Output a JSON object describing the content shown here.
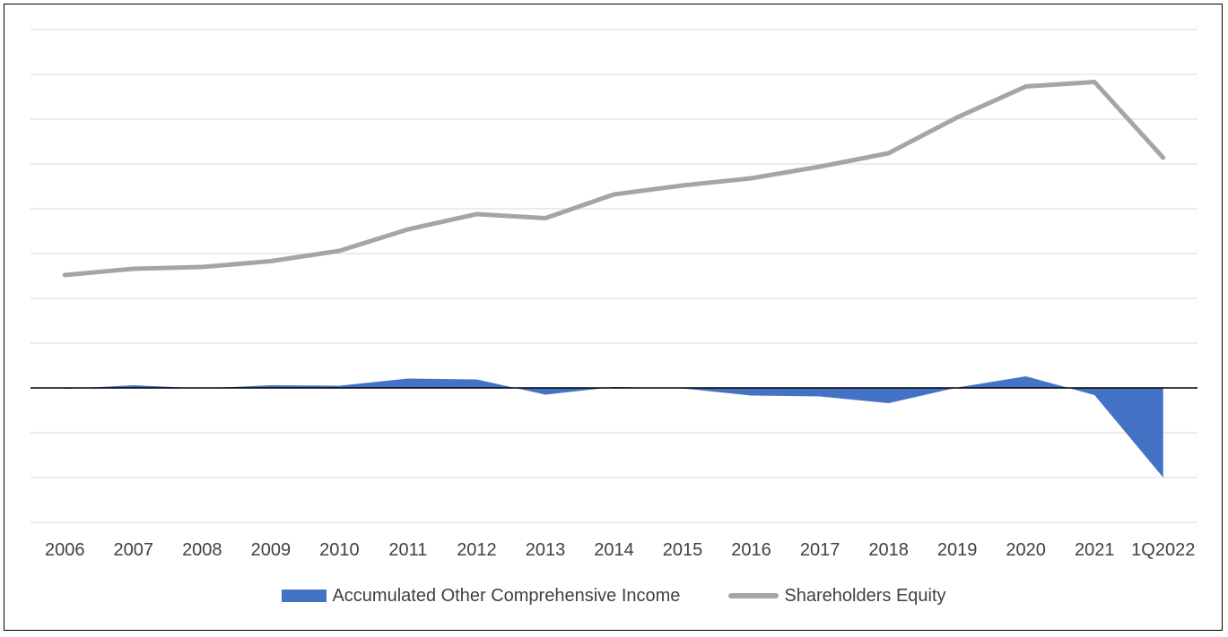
{
  "chart_data": {
    "type": "line",
    "categories": [
      "2006",
      "2007",
      "2008",
      "2009",
      "2010",
      "2011",
      "2012",
      "2013",
      "2014",
      "2015",
      "2016",
      "2017",
      "2018",
      "2019",
      "2020",
      "2021",
      "1Q2022"
    ],
    "series": [
      {
        "name": "Accumulated Other Comprehensive Income",
        "render": "area",
        "color": "#4472c4",
        "values": [
          -0.02,
          0.06,
          -0.01,
          0.06,
          0.05,
          0.21,
          0.19,
          -0.15,
          0.02,
          -0.01,
          -0.17,
          -0.19,
          -0.34,
          0.01,
          0.26,
          -0.16,
          -2.0
        ]
      },
      {
        "name": "Shareholders Equity",
        "render": "line",
        "color": "#a5a5a5",
        "values": [
          2.52,
          2.66,
          2.7,
          2.83,
          3.06,
          3.54,
          3.88,
          3.79,
          4.32,
          4.52,
          4.68,
          4.94,
          5.24,
          6.04,
          6.73,
          6.83,
          5.14
        ]
      }
    ],
    "ylim": [
      -3,
      8
    ],
    "zero_line": true,
    "grid": true,
    "legend_position": "bottom"
  }
}
